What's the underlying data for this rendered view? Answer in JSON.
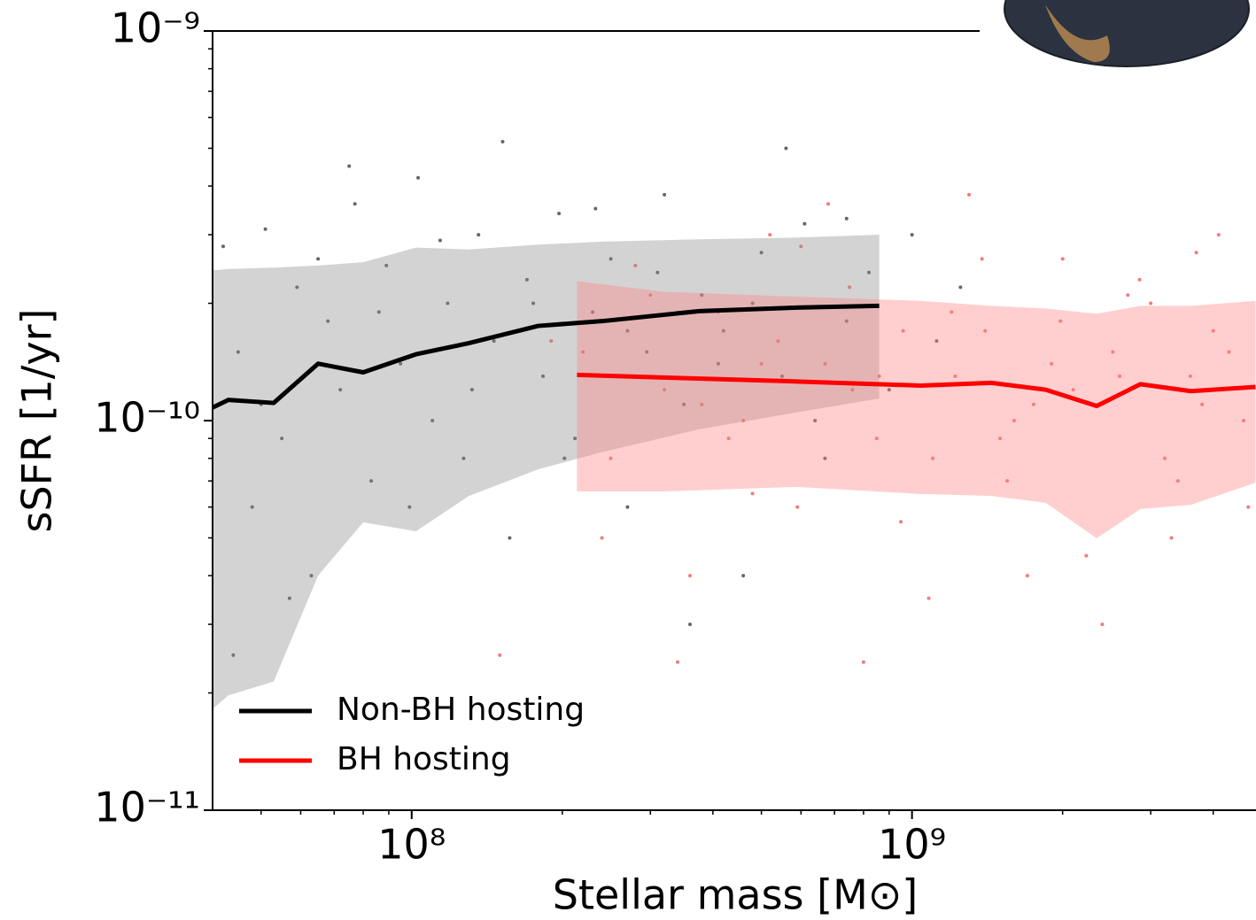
{
  "chart_data": {
    "type": "line",
    "xlabel": "Stellar mass [M⊙]",
    "ylabel": "sSFR [1/yr]",
    "xscale": "log",
    "yscale": "log",
    "xlim": [
      40000000.0,
      4870000000.0
    ],
    "ylim": [
      1e-11,
      1e-09
    ],
    "xticks": [
      {
        "value": 100000000.0,
        "label": "10⁸"
      },
      {
        "value": 1000000000.0,
        "label": "10⁹"
      }
    ],
    "yticks": [
      {
        "value": 1e-11,
        "label": "10⁻¹¹"
      },
      {
        "value": 1e-10,
        "label": "10⁻¹⁰"
      },
      {
        "value": 1e-09,
        "label": "10⁻⁹"
      }
    ],
    "xminorticks": [
      50000000.0,
      60000000.0,
      70000000.0,
      80000000.0,
      90000000.0,
      200000000.0,
      300000000.0,
      400000000.0,
      500000000.0,
      600000000.0,
      700000000.0,
      800000000.0,
      900000000.0,
      2000000000.0,
      3000000000.0,
      4000000000.0
    ],
    "yminorticks": [
      2e-11,
      3e-11,
      4e-11,
      5e-11,
      6e-11,
      7e-11,
      8e-11,
      9e-11,
      2e-10,
      3e-10,
      4e-10,
      5e-10,
      6e-10,
      7e-10,
      8e-10,
      9e-10
    ],
    "legend": "lower left",
    "series": [
      {
        "name": "Non-BH hosting",
        "color": "#000000",
        "band_color": "#8c8c8c",
        "point_color": "#333333",
        "x": [
          40000000.0,
          43000000.0,
          53000000.0,
          65000000.0,
          80000000.0,
          102000000.0,
          130000000.0,
          179000000.0,
          240000000.0,
          376000000.0,
          589000000.0,
          860000000.0
        ],
        "values": [
          1.08e-10,
          1.13e-10,
          1.11e-10,
          1.4e-10,
          1.33e-10,
          1.48e-10,
          1.58e-10,
          1.75e-10,
          1.8e-10,
          1.91e-10,
          1.95e-10,
          1.97e-10
        ],
        "upper": [
          2.43e-10,
          2.45e-10,
          2.47e-10,
          2.5e-10,
          2.55e-10,
          2.78e-10,
          2.75e-10,
          2.83e-10,
          2.88e-10,
          2.92e-10,
          2.95e-10,
          3e-10
        ],
        "lower": [
          1.82e-11,
          1.97e-11,
          2.14e-11,
          4e-11,
          5.48e-11,
          5.2e-11,
          6.4e-11,
          7.5e-11,
          8.3e-11,
          9.5e-11,
          1.05e-10,
          1.14e-10
        ],
        "points": {
          "x": [
            42000000.0,
            45000000.0,
            48000000.0,
            51000000.0,
            55000000.0,
            59000000.0,
            63000000.0,
            68000000.0,
            72000000.0,
            77000000.0,
            83000000.0,
            89000000.0,
            95000000.0,
            103000000.0,
            110000000.0,
            118000000.0,
            127000000.0,
            136000000.0,
            146000000.0,
            157000000.0,
            170000000.0,
            183000000.0,
            197000000.0,
            212000000.0,
            230000000.0,
            250000000.0,
            270000000.0,
            295000000.0,
            320000000.0,
            350000000.0,
            380000000.0,
            420000000.0,
            460000000.0,
            500000000.0,
            550000000.0,
            610000000.0,
            670000000.0,
            740000000.0,
            820000000.0,
            900000000.0,
            1000000000.0,
            1120000000.0,
            1250000000.0,
            44000000.0,
            50000000.0,
            57000000.0,
            65000000.0,
            75000000.0,
            86000000.0,
            99000000.0,
            114000000.0,
            132000000.0,
            152000000.0,
            175000000.0,
            202000000.0,
            233000000.0,
            270000000.0,
            310000000.0,
            360000000.0,
            410000000.0,
            480000000.0,
            560000000.0,
            640000000.0,
            740000000.0
          ],
          "values": [
            2.8e-10,
            1.5e-10,
            6e-11,
            3.1e-10,
            9e-11,
            2.2e-10,
            4e-11,
            1.8e-10,
            1.2e-10,
            3.6e-10,
            7e-11,
            2.5e-10,
            1.4e-10,
            4.2e-10,
            1e-10,
            2e-10,
            8e-11,
            3e-10,
            1.6e-10,
            5e-11,
            2.3e-10,
            1.3e-10,
            3.4e-10,
            9e-11,
            1.9e-10,
            2.6e-10,
            6e-11,
            1.5e-10,
            3.8e-10,
            1.1e-10,
            2.1e-10,
            1.7e-10,
            4e-11,
            2.7e-10,
            1.3e-10,
            3.2e-10,
            8e-11,
            1.8e-10,
            2.4e-10,
            1.2e-10,
            3e-10,
            1.6e-10,
            2.2e-10,
            2.5e-11,
            1.1e-10,
            3.5e-11,
            2.6e-10,
            4.5e-10,
            1.9e-10,
            6e-11,
            2.9e-10,
            1.2e-10,
            5.2e-10,
            2e-10,
            8e-11,
            3.5e-10,
            1.7e-10,
            2.4e-10,
            3e-11,
            1.4e-10,
            2e-10,
            5e-10,
            1e-10,
            3.3e-10
          ]
        }
      },
      {
        "name": "BH hosting",
        "color": "#ff0000",
        "band_color": "#ff8080",
        "point_color": "#f24c4c",
        "x": [
          214000000.0,
          320000000.0,
          589000000.0,
          1040000000.0,
          1440000000.0,
          1850000000.0,
          2340000000.0,
          2860000000.0,
          3610000000.0,
          4860000000.0
        ],
        "values": [
          1.31e-10,
          1.29e-10,
          1.26e-10,
          1.23e-10,
          1.25e-10,
          1.2e-10,
          1.09e-10,
          1.24e-10,
          1.19e-10,
          1.22e-10
        ],
        "upper": [
          2.28e-10,
          2.14e-10,
          2.08e-10,
          2.03e-10,
          1.97e-10,
          1.94e-10,
          1.88e-10,
          1.97e-10,
          1.97e-10,
          2.03e-10
        ],
        "lower": [
          6.58e-11,
          6.58e-11,
          6.76e-11,
          6.48e-11,
          6.41e-11,
          6.15e-11,
          4.99e-11,
          5.93e-11,
          6.08e-11,
          6.93e-11
        ],
        "points": {
          "x": [
            220000000.0,
            250000000.0,
            280000000.0,
            320000000.0,
            360000000.0,
            410000000.0,
            460000000.0,
            520000000.0,
            590000000.0,
            670000000.0,
            750000000.0,
            850000000.0,
            960000000.0,
            1080000000.0,
            1220000000.0,
            1380000000.0,
            1550000000.0,
            1750000000.0,
            1980000000.0,
            2230000000.0,
            2520000000.0,
            2850000000.0,
            3200000000.0,
            3600000000.0,
            4100000000.0,
            4600000000.0,
            150000000.0,
            190000000.0,
            240000000.0,
            300000000.0,
            380000000.0,
            480000000.0,
            600000000.0,
            760000000.0,
            950000000.0,
            1200000000.0,
            1500000000.0,
            1900000000.0,
            2400000000.0,
            3000000000.0,
            3800000000.0,
            4700000000.0,
            270000000.0,
            340000000.0,
            430000000.0,
            540000000.0,
            680000000.0,
            860000000.0,
            1100000000.0,
            1400000000.0,
            1700000000.0,
            2100000000.0,
            2700000000.0,
            3400000000.0,
            4300000000.0,
            1300000000.0,
            1600000000.0,
            2000000000.0,
            2600000000.0,
            3300000000.0,
            4000000000.0,
            800000000.0,
            500000000.0,
            3700000000.0
          ],
          "values": [
            1.5e-10,
            8e-11,
            2.5e-10,
            1.2e-10,
            4e-11,
            1.9e-10,
            1e-10,
            3e-10,
            6e-11,
            1.4e-10,
            2.2e-10,
            9e-11,
            1.7e-10,
            3.5e-11,
            1.3e-10,
            2.6e-10,
            7e-11,
            1.1e-10,
            1.8e-10,
            4.5e-11,
            1.5e-10,
            2.3e-10,
            8e-11,
            1.3e-10,
            3e-10,
            1e-10,
            2.5e-11,
            1.6e-10,
            5e-11,
            2.1e-10,
            1.1e-10,
            6.5e-11,
            2.8e-10,
            1.2e-10,
            5.5e-11,
            1.9e-10,
            9e-11,
            1.4e-10,
            3e-11,
            2e-10,
            1.1e-10,
            6e-11,
            1.3e-10,
            2.4e-11,
            9e-11,
            1.6e-10,
            3.6e-10,
            1.3e-10,
            8e-11,
            1.7e-10,
            4e-11,
            1.2e-10,
            2.1e-10,
            7e-11,
            1.5e-10,
            3.8e-10,
            1e-10,
            2.6e-10,
            1.3e-10,
            5e-11,
            1.7e-10,
            2.4e-11,
            1.4e-10,
            2.7e-10
          ]
        }
      }
    ]
  }
}
